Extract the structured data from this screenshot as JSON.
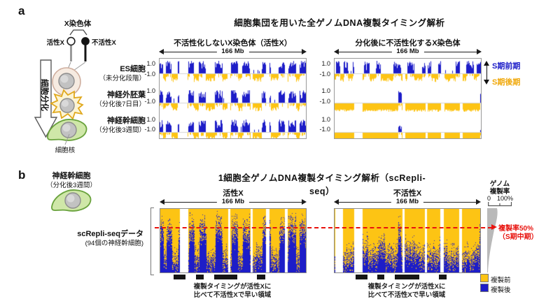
{
  "panel_a": {
    "label": "a",
    "title": "細胞集団を用いた全ゲノムDNA複製タイミング解析",
    "diagram": {
      "x_chromosome_label": "X染色体",
      "active_x": "活性X",
      "inactive_x": "不活性X",
      "differentiation": "細胞分化",
      "nucleus": "細胞核",
      "cells": [
        {
          "name": "ES細胞",
          "stage": "（未分化段階）"
        },
        {
          "name": "神経外胚葉",
          "stage": "（分化後7日目）"
        },
        {
          "name": "神経幹細胞",
          "stage": "（分化後3週間）"
        }
      ]
    },
    "charts": [
      {
        "header": "不活性化しないX染色体（活性X）",
        "scale": "166 Mb"
      },
      {
        "header": "分化後に不活性化するX染色体",
        "scale": "166 Mb"
      }
    ],
    "axis": {
      "top": "1.0",
      "bottom": "-1.0"
    },
    "legend": {
      "early": "S期前期",
      "late": "S期後期"
    }
  },
  "panel_b": {
    "label": "b",
    "title": "1細胞全ゲノムDNA複製タイミング解析（scRepli-seq）",
    "cell": {
      "name": "神経幹細胞",
      "stage": "（分化後3週間）"
    },
    "dataset": {
      "name": "scRepli-seqデータ",
      "sub": "(94個の神経幹細胞)"
    },
    "charts": [
      {
        "header": "活性X",
        "scale": "166 Mb"
      },
      {
        "header": "不活性X",
        "scale": "166 Mb"
      }
    ],
    "rate_axis": {
      "line1": "ゲノム",
      "line2": "複製率",
      "min": "0",
      "max": "100%"
    },
    "mid_s": {
      "line1": "複製率50%",
      "line2": "（S期中期）"
    },
    "legend": {
      "pre": "複製前",
      "post": "複製後"
    },
    "annotation": {
      "line1": "複製タイミングが活性Xに",
      "line2": "比べて不活性Xで早い領域"
    }
  },
  "chart_data": {
    "type": "genomic_replication_timing",
    "x_axis": {
      "label": "166 Mb",
      "range_mb": [
        0,
        166
      ]
    },
    "panel_a": {
      "y_range": [
        -1.0,
        1.0
      ],
      "rows": [
        "ES細胞",
        "神経外胚葉",
        "神経幹細胞"
      ],
      "columns": [
        "活性X(不活性化しない)",
        "分化後に不活性化するX"
      ],
      "profile_kind": [
        [
          "mixed",
          "mixed"
        ],
        [
          "mixed",
          "late_only"
        ],
        [
          "mixed",
          "late_only"
        ]
      ]
    },
    "gaps": [
      [
        0.135,
        0.19
      ],
      [
        0.465,
        0.483
      ],
      [
        0.62,
        0.636
      ],
      [
        0.725,
        0.75
      ],
      [
        0.858,
        0.874
      ]
    ],
    "early_segments_active": [
      [
        0.0,
        0.025
      ],
      [
        0.045,
        0.08
      ],
      [
        0.125,
        0.165
      ],
      [
        0.195,
        0.235
      ],
      [
        0.27,
        0.315
      ],
      [
        0.38,
        0.43
      ],
      [
        0.49,
        0.535
      ],
      [
        0.565,
        0.615
      ],
      [
        0.7,
        0.76
      ],
      [
        0.815,
        0.857
      ],
      [
        0.878,
        0.935
      ],
      [
        0.955,
        1.0
      ]
    ],
    "early_segments_inactive_es": [
      [
        0.01,
        0.04
      ],
      [
        0.06,
        0.09
      ],
      [
        0.125,
        0.17
      ],
      [
        0.2,
        0.24
      ],
      [
        0.28,
        0.315
      ],
      [
        0.4,
        0.455
      ],
      [
        0.5,
        0.545
      ],
      [
        0.6,
        0.66
      ],
      [
        0.71,
        0.75
      ],
      [
        0.83,
        0.874
      ],
      [
        0.9,
        0.95
      ],
      [
        0.97,
        1.0
      ]
    ],
    "early_spikes_inactive_late": [
      [
        0.437,
        0.457
      ],
      [
        0.993,
        1.0
      ]
    ],
    "heatmap": {
      "n_cells": 94,
      "rows_sorted_by": "genome replication %",
      "mid_s_red_line_fraction_from_top": 0.3,
      "right_extra_gap": [
        [
          0.004,
          0.06
        ]
      ]
    },
    "region_bars_active": [
      [
        0.095,
        0.176
      ],
      [
        0.248,
        0.305
      ],
      [
        0.376,
        0.533
      ],
      [
        0.667,
        0.724
      ]
    ],
    "region_bars_inactive": [
      [
        0.148,
        0.229
      ],
      [
        0.3,
        0.348
      ],
      [
        0.419,
        0.586
      ],
      [
        0.719,
        0.776
      ]
    ],
    "colors": {
      "early_blue": "#1d1dc8",
      "late_yellow": "#fdc414",
      "red": "#e8120d",
      "gray_distribution": "#b9b9b9",
      "region_bar_black": "#161616",
      "late_text": "#f0a80a"
    },
    "seeds": {
      "panel_a": [
        11,
        12,
        13,
        21,
        22,
        23
      ],
      "hm_active": 101,
      "hm_inactive": 202
    }
  }
}
